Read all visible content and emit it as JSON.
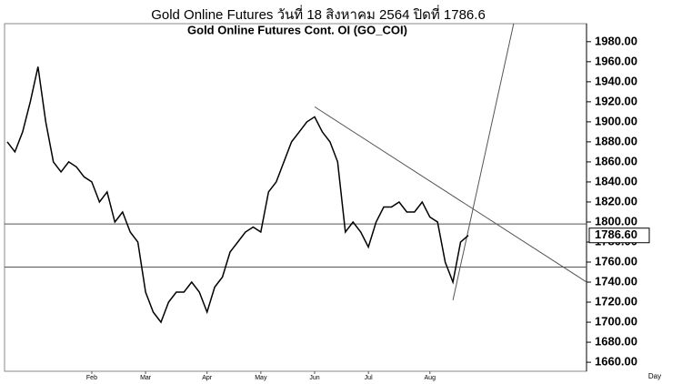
{
  "chart_data": {
    "type": "line",
    "title": "Gold Online Futures วันที่   18 สิงหาคม   2564 ปิดที่   1786.6",
    "subtitle": "Gold Online Futures Cont. OI (GO_COI)",
    "x_unit_label": "Day",
    "categories": [
      null,
      null,
      null,
      null,
      null,
      null,
      null,
      null,
      null,
      null,
      null,
      "Feb",
      null,
      null,
      null,
      null,
      null,
      null,
      "Mar",
      null,
      null,
      null,
      null,
      null,
      null,
      null,
      "Apr",
      null,
      null,
      null,
      null,
      null,
      null,
      "May",
      null,
      null,
      null,
      null,
      null,
      null,
      "Jun",
      null,
      null,
      null,
      null,
      null,
      null,
      "Jul",
      null,
      null,
      null,
      null,
      null,
      null,
      null,
      "Aug",
      null,
      null,
      null,
      null,
      null
    ],
    "series": [
      {
        "name": "GO_COI",
        "color": "#000000",
        "values": [
          1880,
          1870,
          1890,
          1920,
          1955,
          1900,
          1860,
          1850,
          1860,
          1855,
          1845,
          1840,
          1820,
          1830,
          1800,
          1810,
          1790,
          1780,
          1730,
          1710,
          1700,
          1720,
          1730,
          1730,
          1740,
          1730,
          1710,
          1735,
          1745,
          1770,
          1780,
          1790,
          1795,
          1790,
          1830,
          1840,
          1860,
          1880,
          1890,
          1900,
          1905,
          1890,
          1880,
          1860,
          1790,
          1800,
          1790,
          1775,
          1800,
          1815,
          1815,
          1820,
          1810,
          1810,
          1820,
          1805,
          1800,
          1760,
          1740,
          1780,
          1786.6
        ]
      }
    ],
    "hlines": [
      1798,
      1755
    ],
    "trendlines": [
      {
        "x": [
          40,
          75.4
        ],
        "y": [
          1915,
          1740
        ]
      },
      {
        "x": [
          58,
          65.9
        ],
        "y": [
          1722,
          1998
        ]
      }
    ],
    "last_price": {
      "value": 1786.6,
      "label": "1786.60"
    },
    "ylim": [
      1651,
      1998
    ],
    "yticks": [
      {
        "value": 1660,
        "label": "1660.00"
      },
      {
        "value": 1680,
        "label": "1680.00"
      },
      {
        "value": 1700,
        "label": "1700.00"
      },
      {
        "value": 1720,
        "label": "1720.00"
      },
      {
        "value": 1740,
        "label": "1740.00"
      },
      {
        "value": 1760,
        "label": "1760.00"
      },
      {
        "value": 1780,
        "label": "1780.00"
      },
      {
        "value": 1800,
        "label": "1800.00"
      },
      {
        "value": 1820,
        "label": "1820.00"
      },
      {
        "value": 1840,
        "label": "1840.00"
      },
      {
        "value": 1860,
        "label": "1860.00"
      },
      {
        "value": 1880,
        "label": "1880.00"
      },
      {
        "value": 1900,
        "label": "1900.00"
      },
      {
        "value": 1920,
        "label": "1920.00"
      },
      {
        "value": 1940,
        "label": "1940.00"
      },
      {
        "value": 1960,
        "label": "1960.00"
      },
      {
        "value": 1980,
        "label": "1980.00"
      }
    ]
  }
}
